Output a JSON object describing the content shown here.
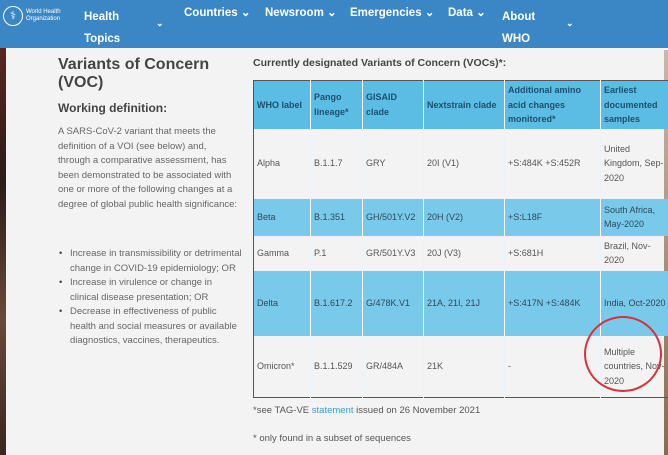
{
  "nav": {
    "logo_text": "World Health Organization",
    "items": [
      "Health Topics",
      "Countries",
      "Newsroom",
      "Emergencies",
      "Data",
      "About WHO"
    ]
  },
  "sidebar": {
    "title": "Variants of Concern (VOC)",
    "subtitle": "Working definition:",
    "definition": "A SARS-CoV-2 variant that meets the definition of a VOI (see below) and, through a comparative assessment, has been demonstrated to be associated with one or more of the following changes at a degree of global public health significance:",
    "bullets": [
      "Increase in transmissibility or detrimental change in COVID-19 epidemiology; OR",
      "Increase in virulence or change in clinical disease presentation; OR",
      "Decrease in effectiveness of public health and social measures or available diagnostics, vaccines, therapeutics."
    ]
  },
  "table": {
    "title": "Currently designated Variants of Concern (VOCs)*:",
    "headers": [
      "WHO label",
      "Pango lineage*",
      "GISAID clade",
      "Nextstrain clade",
      "Additional amino acid changes monitored*",
      "Earliest documented samples"
    ],
    "rows": [
      [
        "Alpha",
        "B.1.1.7",
        "GRY",
        "20I (V1)",
        "+S:484K +S:452R",
        "United Kingdom, Sep-2020"
      ],
      [
        "Beta",
        "B.1.351",
        "GH/501Y.V2",
        "20H (V2)",
        "+S:L18F",
        "South Africa, May-2020"
      ],
      [
        "Gamma",
        "P.1",
        "GR/501Y.V3",
        "20J (V3)",
        "+S:681H",
        "Brazil, Nov-2020"
      ],
      [
        "Delta",
        "B.1.617.2",
        "G/478K.V1",
        "21A, 21I, 21J",
        "+S:417N +S:484K",
        "India, Oct-2020"
      ],
      [
        "Omicron*",
        "B.1.1.529",
        "GR/484A",
        "21K",
        "-",
        "Multiple countries, Nov-2020"
      ]
    ]
  },
  "footnotes": {
    "f1_pre": "*see TAG-VE ",
    "f1_link": "statement",
    "f1_post": " issued on 26 November 2021",
    "f2": "* only found in a subset of sequences"
  }
}
